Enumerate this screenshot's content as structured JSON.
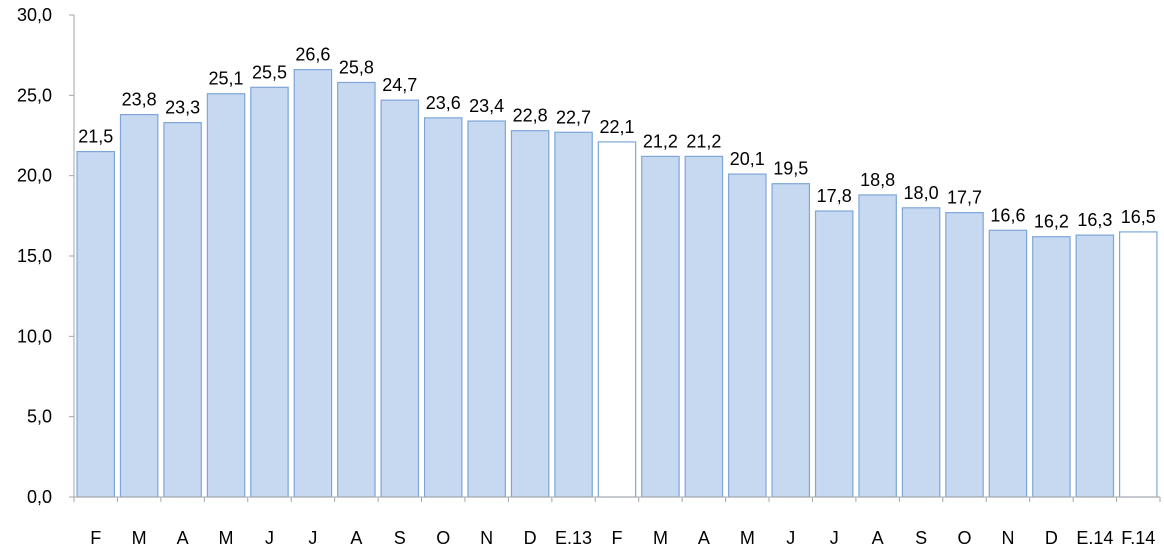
{
  "chart_data": {
    "type": "bar",
    "title": "",
    "xlabel": "",
    "ylabel": "",
    "ylim": [
      0,
      30
    ],
    "y_ticks": [
      "0,0",
      "5,0",
      "10,0",
      "15,0",
      "20,0",
      "25,0",
      "30,0"
    ],
    "grid": false,
    "legend": "none",
    "categories": [
      "F",
      "M",
      "A",
      "M",
      "J",
      "J",
      "A",
      "S",
      "O",
      "N",
      "D",
      "E.13",
      "F",
      "M",
      "A",
      "M",
      "J",
      "J",
      "A",
      "S",
      "O",
      "N",
      "D",
      "E.14",
      "F.14"
    ],
    "values": [
      21.5,
      23.8,
      23.3,
      25.1,
      25.5,
      26.6,
      25.8,
      24.7,
      23.6,
      23.4,
      22.8,
      22.7,
      22.1,
      21.2,
      21.2,
      20.1,
      19.5,
      17.8,
      18.8,
      18.0,
      17.7,
      16.6,
      16.2,
      16.3,
      16.5
    ],
    "value_labels": [
      "21,5",
      "23,8",
      "23,3",
      "25,1",
      "25,5",
      "26,6",
      "25,8",
      "24,7",
      "23,6",
      "23,4",
      "22,8",
      "22,7",
      "22,1",
      "21,2",
      "21,2",
      "20,1",
      "19,5",
      "17,8",
      "18,8",
      "18,0",
      "17,7",
      "16,6",
      "16,2",
      "16,3",
      "16,5"
    ],
    "highlighted": [
      false,
      false,
      false,
      false,
      false,
      false,
      false,
      false,
      false,
      false,
      false,
      false,
      true,
      false,
      false,
      false,
      false,
      false,
      false,
      false,
      false,
      false,
      false,
      false,
      true
    ],
    "colors": {
      "bar_fill": "#c6d9f1",
      "bar_stroke": "#7ea6d8",
      "highlight_fill": "#ffffff",
      "highlight_stroke": "#7ea6d8",
      "axis": "#a6a6a6"
    }
  }
}
